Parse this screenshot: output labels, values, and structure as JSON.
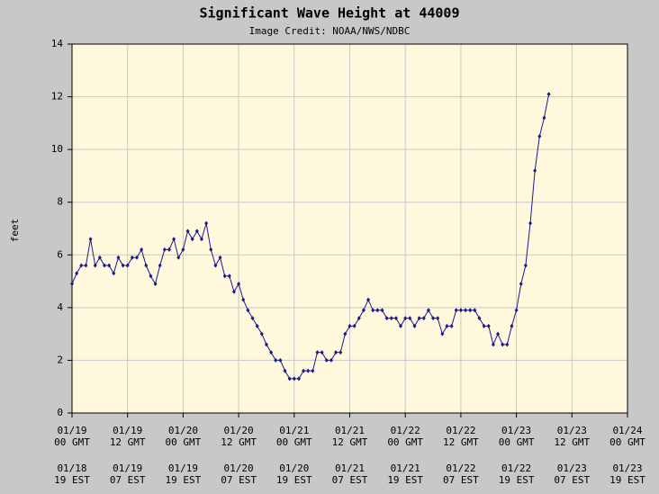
{
  "chart_data": {
    "type": "line",
    "title": "Significant Wave Height at 44009",
    "subtitle": "Image Credit: NOAA/NWS/NDBC",
    "ylabel": "feet",
    "x": [
      0,
      1,
      2,
      3,
      4,
      5,
      6,
      7,
      8,
      9,
      10,
      11,
      12,
      13,
      14,
      15,
      16,
      17,
      18,
      19,
      20,
      21,
      22,
      23,
      24,
      25,
      26,
      27,
      28,
      29,
      30,
      31,
      32,
      33,
      34,
      35,
      36,
      37,
      38,
      39,
      40,
      41,
      42,
      43,
      44,
      45,
      46,
      47,
      48,
      49,
      50,
      51,
      52,
      53,
      54,
      55,
      56,
      57,
      58,
      59,
      60,
      61,
      62,
      63,
      64,
      65,
      66,
      67,
      68,
      69,
      70,
      71,
      72,
      73,
      74,
      75,
      76,
      77,
      78,
      79,
      80,
      81,
      82,
      83,
      84,
      85,
      86,
      87,
      88,
      89,
      90,
      91,
      92,
      93,
      94,
      95,
      96,
      97,
      98,
      99,
      100,
      101,
      102,
      103
    ],
    "series": [
      {
        "name": "Significant Wave Height",
        "color": "#1a1a8c",
        "values": [
          4.9,
          5.3,
          5.6,
          5.6,
          6.6,
          5.6,
          5.9,
          5.6,
          5.6,
          5.3,
          5.9,
          5.6,
          5.6,
          5.9,
          5.9,
          6.2,
          5.6,
          5.2,
          4.9,
          5.6,
          6.2,
          6.2,
          6.6,
          5.9,
          6.2,
          6.9,
          6.6,
          6.9,
          6.6,
          7.2,
          6.2,
          5.6,
          5.9,
          5.2,
          5.2,
          4.6,
          4.9,
          4.3,
          3.9,
          3.6,
          3.3,
          3.0,
          2.6,
          2.3,
          2.0,
          2.0,
          1.6,
          1.3,
          1.3,
          1.3,
          1.6,
          1.6,
          1.6,
          2.3,
          2.3,
          2.0,
          2.0,
          2.3,
          2.3,
          3.0,
          3.3,
          3.3,
          3.6,
          3.9,
          4.3,
          3.9,
          3.9,
          3.9,
          3.6,
          3.6,
          3.6,
          3.3,
          3.6,
          3.6,
          3.3,
          3.6,
          3.6,
          3.9,
          3.6,
          3.6,
          3.0,
          3.3,
          3.3,
          3.9,
          3.9,
          3.9,
          3.9,
          3.9,
          3.6,
          3.3,
          3.3,
          2.6,
          3.0,
          2.6,
          2.6,
          3.3,
          3.9,
          4.9,
          5.6,
          7.2,
          9.2,
          10.5,
          11.2,
          12.1
        ]
      }
    ],
    "xlim": [
      0,
      120
    ],
    "xticks": [
      {
        "value": 0,
        "label": [
          "01/19",
          "00 GMT"
        ]
      },
      {
        "value": 12,
        "label": [
          "01/19",
          "12 GMT"
        ]
      },
      {
        "value": 24,
        "label": [
          "01/20",
          "00 GMT"
        ]
      },
      {
        "value": 36,
        "label": [
          "01/20",
          "12 GMT"
        ]
      },
      {
        "value": 48,
        "label": [
          "01/21",
          "00 GMT"
        ]
      },
      {
        "value": 60,
        "label": [
          "01/21",
          "12 GMT"
        ]
      },
      {
        "value": 72,
        "label": [
          "01/22",
          "00 GMT"
        ]
      },
      {
        "value": 84,
        "label": [
          "01/22",
          "12 GMT"
        ]
      },
      {
        "value": 96,
        "label": [
          "01/23",
          "00 GMT"
        ]
      },
      {
        "value": 108,
        "label": [
          "01/23",
          "12 GMT"
        ]
      },
      {
        "value": 120,
        "label": [
          "01/24",
          "00 GMT"
        ]
      }
    ],
    "xticks_local": [
      {
        "value": 0,
        "label": [
          "01/18",
          "19 EST"
        ]
      },
      {
        "value": 12,
        "label": [
          "01/19",
          "07 EST"
        ]
      },
      {
        "value": 24,
        "label": [
          "01/19",
          "19 EST"
        ]
      },
      {
        "value": 36,
        "label": [
          "01/20",
          "07 EST"
        ]
      },
      {
        "value": 48,
        "label": [
          "01/20",
          "19 EST"
        ]
      },
      {
        "value": 60,
        "label": [
          "01/21",
          "07 EST"
        ]
      },
      {
        "value": 72,
        "label": [
          "01/21",
          "19 EST"
        ]
      },
      {
        "value": 84,
        "label": [
          "01/22",
          "07 EST"
        ]
      },
      {
        "value": 96,
        "label": [
          "01/22",
          "19 EST"
        ]
      },
      {
        "value": 108,
        "label": [
          "01/23",
          "07 EST"
        ]
      },
      {
        "value": 120,
        "label": [
          "01/23",
          "19 EST"
        ]
      }
    ],
    "ylim": [
      0,
      14
    ],
    "yticks": [
      0,
      2,
      4,
      6,
      8,
      10,
      12,
      14
    ],
    "grid": true,
    "background": "#fff8dc"
  }
}
